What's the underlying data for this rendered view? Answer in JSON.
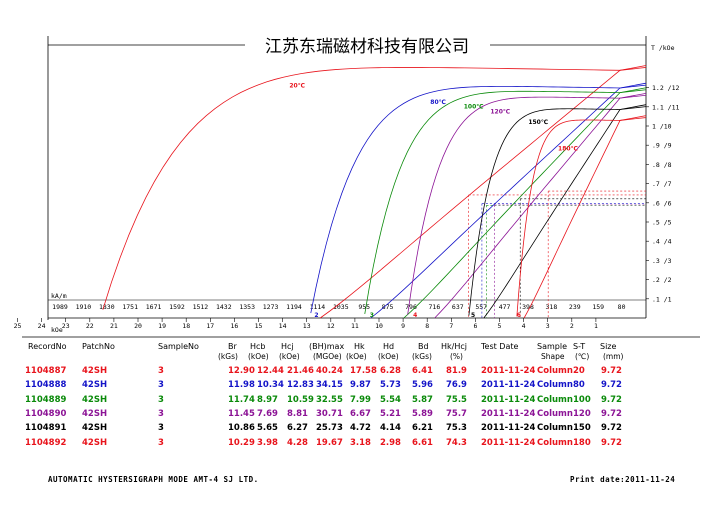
{
  "title": "江苏东瑞磁材科技有限公司",
  "footer": {
    "left": "AUTOMATIC  HYSTERSIGRAPH  MODE  AMT-4     SJ  LTD.",
    "right": "Print date:2011-11-24"
  },
  "table": {
    "headers": [
      "RecordNo",
      "PatchNo",
      "SampleNo",
      "Br",
      "Hcb",
      "Hcj",
      "(BH)max",
      "Hk",
      "Hd",
      "Bd",
      "Hk/Hcj",
      "Test Date",
      "Sample",
      "S-T",
      "Size"
    ],
    "units": [
      "(kGs)",
      "(kOe)",
      "(kOe)",
      "(MGOe)",
      "(kOe)",
      "(kOe)",
      "(kGs)",
      "(%)",
      "Shape",
      "(℃)",
      "(mm)"
    ],
    "rows": [
      {
        "color": "#e8141c",
        "cells": [
          "1104887",
          "42SH",
          "3",
          "12.90",
          "12.44",
          "21.46",
          "40.24",
          "17.58",
          "6.28",
          "6.41",
          "81.9",
          "2011-11-24",
          "Column",
          "20",
          "9.72"
        ]
      },
      {
        "color": "#1414c8",
        "cells": [
          "1104888",
          "42SH",
          "3",
          "11.98",
          "10.34",
          "12.83",
          "34.15",
          "9.87",
          "5.73",
          "5.96",
          "76.9",
          "2011-11-24",
          "Column",
          "80",
          "9.72"
        ]
      },
      {
        "color": "#0a8a0a",
        "cells": [
          "1104889",
          "42SH",
          "3",
          "11.74",
          "8.97",
          "10.59",
          "32.55",
          "7.99",
          "5.54",
          "5.87",
          "75.5",
          "2011-11-24",
          "Column",
          "100",
          "9.72"
        ]
      },
      {
        "color": "#8c1496",
        "cells": [
          "1104890",
          "42SH",
          "3",
          "11.45",
          "7.69",
          "8.81",
          "30.71",
          "6.67",
          "5.21",
          "5.89",
          "75.7",
          "2011-11-24",
          "Column",
          "120",
          "9.72"
        ]
      },
      {
        "color": "#000000",
        "cells": [
          "1104891",
          "42SH",
          "3",
          "10.86",
          "5.65",
          "6.27",
          "25.73",
          "4.72",
          "4.14",
          "6.21",
          "75.3",
          "2011-11-24",
          "Column",
          "150",
          "9.72"
        ]
      },
      {
        "color": "#e8141c",
        "cells": [
          "1104892",
          "42SH",
          "3",
          "10.29",
          "3.98",
          "4.28",
          "19.67",
          "3.18",
          "2.98",
          "6.61",
          "74.3",
          "2011-11-24",
          "Column",
          "180",
          "9.72"
        ]
      }
    ]
  },
  "chart_data": {
    "type": "line",
    "title": "江苏东瑞磁材科技有限公司",
    "right_axis_label": "T /kOe",
    "right_axis_ticks": [
      ".1 /1",
      ".2 /2",
      ".3 /3",
      ".4 /4",
      ".5 /5",
      ".6 /6",
      ".7 /7",
      ".8 /8",
      ".9 /9",
      "1 /10",
      "1.1 /11",
      "1.2 /12"
    ],
    "kam_axis_label": "kA/m",
    "kam_ticks": [
      "1989",
      "1910",
      "1830",
      "1751",
      "1671",
      "1592",
      "1512",
      "1432",
      "1353",
      "1273",
      "1194",
      "1114",
      "1035",
      "955",
      "875",
      "796",
      "716",
      "637",
      "557",
      "477",
      "398",
      "318",
      "239",
      "159",
      "80"
    ],
    "koe_axis_label": "kOe",
    "koe_ticks": [
      "25",
      "24",
      "23",
      "22",
      "21",
      "20",
      "19",
      "18",
      "17",
      "16",
      "15",
      "14",
      "13",
      "12",
      "11",
      "10",
      "9",
      "8",
      "7",
      "6",
      "5",
      "4",
      "3",
      "2",
      "1"
    ],
    "xlim_kOe": [
      25.5,
      0
    ],
    "ylim_kGs_T": [
      0,
      13
    ],
    "grid": false,
    "series": [
      {
        "name": "20℃",
        "color": "#e8141c",
        "Br_kGs": 12.9,
        "Hcj_kOe": 21.46,
        "Hcb_kOe": 12.44,
        "Hd_kOe": 6.28,
        "Bd_kGs": 6.41
      },
      {
        "name": "80℃",
        "color": "#1414c8",
        "Br_kGs": 11.98,
        "Hcj_kOe": 12.83,
        "Hcb_kOe": 10.34,
        "Hd_kOe": 5.73,
        "Bd_kGs": 5.96
      },
      {
        "name": "100℃",
        "color": "#0a8a0a",
        "Br_kGs": 11.74,
        "Hcj_kOe": 10.59,
        "Hcb_kOe": 8.97,
        "Hd_kOe": 5.54,
        "Bd_kGs": 5.87
      },
      {
        "name": "120℃",
        "color": "#8c1496",
        "Br_kGs": 11.45,
        "Hcj_kOe": 8.81,
        "Hcb_kOe": 7.69,
        "Hd_kOe": 5.21,
        "Bd_kGs": 5.89
      },
      {
        "name": "150℃",
        "color": "#000000",
        "Br_kGs": 10.86,
        "Hcj_kOe": 6.27,
        "Hcb_kOe": 5.65,
        "Hd_kOe": 4.14,
        "Bd_kGs": 6.21
      },
      {
        "name": "180℃",
        "color": "#e8141c",
        "Br_kGs": 10.29,
        "Hcj_kOe": 4.28,
        "Hcb_kOe": 3.98,
        "Hd_kOe": 2.98,
        "Bd_kGs": 6.61
      }
    ],
    "intrinsic_markers": [
      "2",
      "3",
      "4",
      "5",
      "6"
    ]
  }
}
